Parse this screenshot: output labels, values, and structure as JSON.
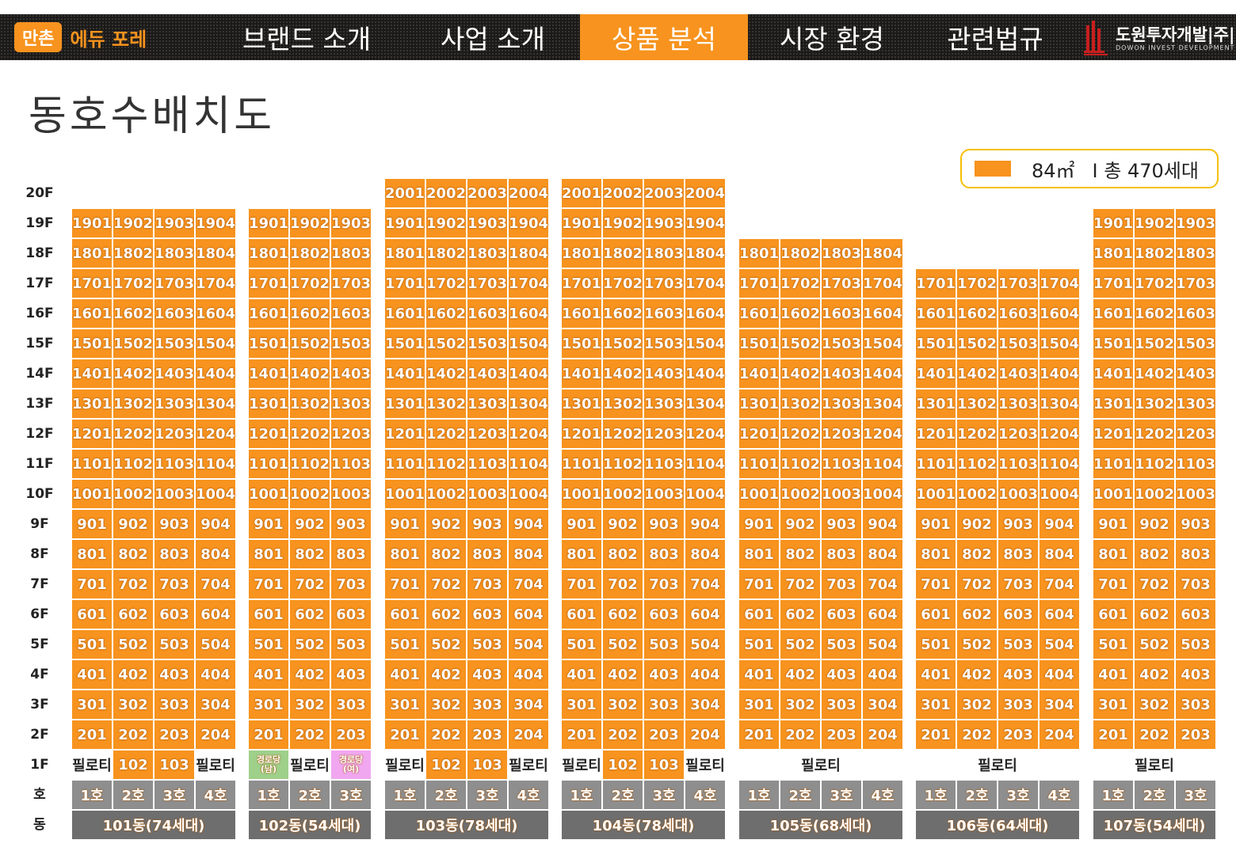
{
  "header": {
    "logo_box": "만촌",
    "logo_text": "에듀 포레",
    "nav": [
      "브랜드 소개",
      "사업 소개",
      "상품 분석",
      "시장 환경",
      "관련법규"
    ],
    "active_nav": "상품 분석",
    "company_name": "도원투자개발|주|",
    "company_name_en": "DOWON INVEST DEVELOPMENT"
  },
  "title": "동호수배치도",
  "legend": {
    "area": "84㎡",
    "total": "I 총 470세대",
    "color": "#f7931e"
  },
  "floor_labels": [
    "20F",
    "19F",
    "18F",
    "17F",
    "16F",
    "15F",
    "14F",
    "13F",
    "12F",
    "11F",
    "10F",
    "9F",
    "8F",
    "7F",
    "6F",
    "5F",
    "4F",
    "3F",
    "2F",
    "1F",
    "호",
    "동"
  ],
  "colors": {
    "unit": "#f7931e",
    "ho": "#8e8e8e",
    "dong": "#6e6e6e",
    "senior_m": "#9ed08a",
    "senior_f": "#f1a7f0"
  },
  "buildings": [
    {
      "name": "101동(74세대)",
      "top_floor": 19,
      "lines": [
        "1호",
        "2호",
        "3호",
        "4호"
      ],
      "ground_merged": false,
      "ground": [
        {
          "type": "pilotis",
          "label": "필로티"
        },
        {
          "type": "unit",
          "label": "102"
        },
        {
          "type": "unit",
          "label": "103"
        },
        {
          "type": "pilotis",
          "label": "필로티"
        }
      ]
    },
    {
      "name": "102동(54세대)",
      "top_floor": 19,
      "lines": [
        "1호",
        "2호",
        "3호"
      ],
      "ground_merged": false,
      "ground": [
        {
          "type": "senior-m",
          "label": "경로당\n(남)"
        },
        {
          "type": "pilotis",
          "label": "필로티"
        },
        {
          "type": "senior-f",
          "label": "경로당\n(여)"
        }
      ]
    },
    {
      "name": "103동(78세대)",
      "top_floor": 20,
      "lines": [
        "1호",
        "2호",
        "3호",
        "4호"
      ],
      "ground_merged": false,
      "ground": [
        {
          "type": "pilotis",
          "label": "필로티"
        },
        {
          "type": "unit",
          "label": "102"
        },
        {
          "type": "unit",
          "label": "103"
        },
        {
          "type": "pilotis",
          "label": "필로티"
        }
      ]
    },
    {
      "name": "104동(78세대)",
      "top_floor": 20,
      "lines": [
        "1호",
        "2호",
        "3호",
        "4호"
      ],
      "ground_merged": false,
      "ground": [
        {
          "type": "pilotis",
          "label": "필로티"
        },
        {
          "type": "unit",
          "label": "102"
        },
        {
          "type": "unit",
          "label": "103"
        },
        {
          "type": "pilotis",
          "label": "필로티"
        }
      ]
    },
    {
      "name": "105동(68세대)",
      "top_floor": 18,
      "lines": [
        "1호",
        "2호",
        "3호",
        "4호"
      ],
      "ground_merged": true,
      "ground": [
        {
          "type": "pilotis",
          "label": "필로티"
        }
      ]
    },
    {
      "name": "106동(64세대)",
      "top_floor": 17,
      "lines": [
        "1호",
        "2호",
        "3호",
        "4호"
      ],
      "ground_merged": true,
      "ground": [
        {
          "type": "pilotis",
          "label": "필로티"
        }
      ]
    },
    {
      "name": "107동(54세대)",
      "top_floor": 19,
      "lines": [
        "1호",
        "2호",
        "3호"
      ],
      "ground_merged": true,
      "ground": [
        {
          "type": "pilotis",
          "label": "필로티"
        }
      ]
    }
  ]
}
